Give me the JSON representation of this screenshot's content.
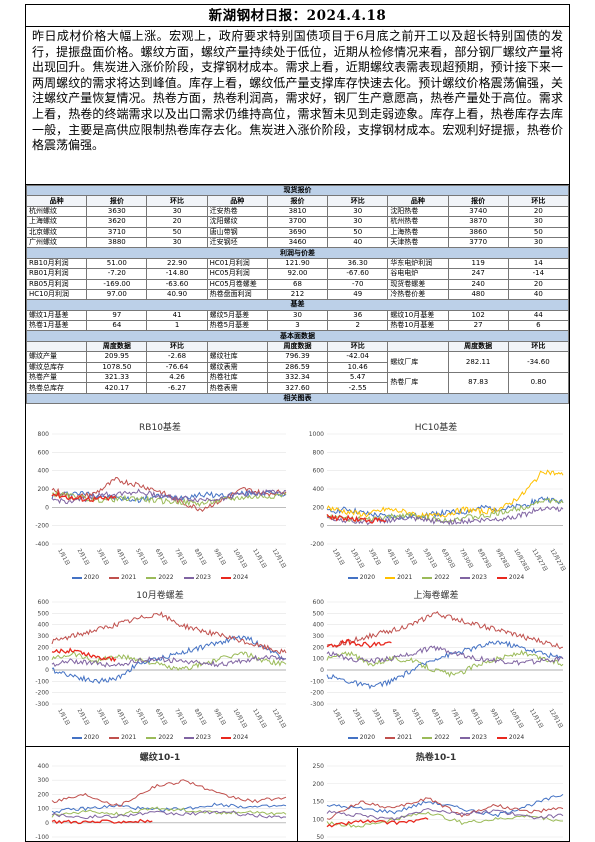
{
  "title": "新湖钢材日报：2024.4.18",
  "summary": "昨日成材价格大幅上涨。宏观上，政府要求特别国债项目于6月底之前开工以及超长特别国债的发行，提振盘面价格。螺纹方面，螺纹产量持续处于低位，近期从检修情况来看，部分钢厂螺纹产量将出现回升。焦炭进入涨价阶段，支撑钢材成本。需求上看，近期螺纹表需表现超预期，预计接下来一两周螺纹的需求将达到峰值。库存上看，螺纹低产量支撑库存快速去化。预计螺纹价格震荡偏强，关注螺纹产量恢复情况。热卷方面，热卷利润高，需求好，钢厂生产意愿高，热卷产量处于高位。需求上看，热卷的终端需求以及出口需求仍维持高位，需求暂未见到走弱迹象。库存上看，热卷库存去库一般，主要是高供应限制热卷库存去化。焦炭进入涨价阶段，支撑钢材成本。宏观利好提振，热卷价格震荡偏强。",
  "spot": {
    "section": "现货报价",
    "headers": [
      "品种",
      "报价",
      "环比",
      "品种",
      "报价",
      "环比",
      "品种",
      "报价",
      "环比"
    ],
    "rows": [
      [
        "杭州螺纹",
        "3630",
        "30",
        "迁安热卷",
        "3810",
        "30",
        "沈阳热卷",
        "3740",
        "20"
      ],
      [
        "上海螺纹",
        "3620",
        "20",
        "沈阳螺纹",
        "3700",
        "30",
        "杭州热卷",
        "3870",
        "30"
      ],
      [
        "北京螺纹",
        "3710",
        "50",
        "唐山带钢",
        "3690",
        "50",
        "上海热卷",
        "3860",
        "50"
      ],
      [
        "广州螺纹",
        "3880",
        "30",
        "迁安钢坯",
        "3460",
        "40",
        "天津热卷",
        "3770",
        "30"
      ]
    ]
  },
  "profit": {
    "section": "利润与价差",
    "rows": [
      [
        "RB10月利润",
        "51.00",
        "22.90",
        "HC01月利润",
        "121.90",
        "36.30",
        "华东电炉利润",
        "119",
        "14"
      ],
      [
        "RB01月利润",
        "-7.20",
        "-14.80",
        "HC05月利润",
        "92.00",
        "-67.60",
        "谷电电炉",
        "247",
        "-14"
      ],
      [
        "RB05月利润",
        "-169.00",
        "-63.60",
        "HC05月卷螺差",
        "68",
        "-70",
        "现货卷螺差",
        "240",
        "20"
      ],
      [
        "HC10月利润",
        "97.00",
        "40.90",
        "热卷盘面利润",
        "212",
        "49",
        "冷热卷价差",
        "480",
        "40"
      ]
    ]
  },
  "basis": {
    "section": "基差",
    "rows": [
      [
        "螺纹1月基差",
        "97",
        "41",
        "螺纹5月基差",
        "30",
        "36",
        "螺纹10月基差",
        "102",
        "44"
      ],
      [
        "热卷1月基差",
        "64",
        "1",
        "热卷5月基差",
        "3",
        "2",
        "热卷10月基差",
        "27",
        "6"
      ]
    ]
  },
  "fundamental": {
    "section": "基本面数据",
    "headers": [
      "",
      "周度数据",
      "环比",
      "",
      "周度数据",
      "环比",
      "",
      "周度数据",
      "环比"
    ],
    "rows": [
      [
        "螺纹产量",
        "209.95",
        "-2.68",
        "螺纹社库",
        "796.39",
        "-42.04",
        "螺纹厂库",
        "282.11",
        "-34.60"
      ],
      [
        "螺纹总库存",
        "1078.50",
        "-76.64",
        "螺纹表需",
        "286.59",
        "10.46",
        "",
        "",
        ""
      ],
      [
        "热卷产量",
        "321.33",
        "4.26",
        "热卷社库",
        "332.34",
        "5.47",
        "热卷厂库",
        "87.83",
        "0.80"
      ],
      [
        "热卷总库存",
        "420.17",
        "-6.27",
        "热卷表需",
        "327.60",
        "-2.55",
        "",
        "",
        ""
      ]
    ]
  },
  "charts_section": "相关图表",
  "legend_colors": {
    "2020": "#4472c4",
    "2021": "#c0504d",
    "2022": "#9bbb59",
    "2023": "#8064a2",
    "2024": "#e8281e",
    "2024_hc": "#e8281e"
  },
  "chart_data": [
    {
      "type": "line",
      "title": "RB10基差",
      "ylim": [
        -400,
        800
      ],
      "yticks": [
        "800",
        "600",
        "400",
        "200",
        "0",
        "-200",
        "-400"
      ],
      "xticks": [
        "1月1日",
        "2月1日",
        "3月1日",
        "4月1日",
        "5月1日",
        "6月1日",
        "7月1日",
        "8月1日",
        "9月1日",
        "10月1日",
        "11月1日",
        "12月1日"
      ],
      "series": [
        {
          "name": "2020",
          "color": "#4472c4",
          "values": [
            120,
            160,
            140,
            100,
            80,
            120,
            110,
            140,
            130,
            150,
            160,
            140
          ]
        },
        {
          "name": "2021",
          "color": "#c0504d",
          "values": [
            200,
            100,
            150,
            300,
            250,
            180,
            60,
            -20,
            80,
            200,
            150,
            170
          ]
        },
        {
          "name": "2022",
          "color": "#9bbb59",
          "values": [
            150,
            120,
            80,
            90,
            100,
            70,
            60,
            40,
            80,
            110,
            120,
            140
          ]
        },
        {
          "name": "2023",
          "color": "#8064a2",
          "values": [
            80,
            60,
            120,
            150,
            170,
            130,
            100,
            80,
            100,
            150,
            160,
            180
          ]
        },
        {
          "name": "2024",
          "color": "#e8281e",
          "values": [
            150,
            100,
            90,
            100
          ]
        }
      ]
    },
    {
      "type": "line",
      "title": "HC10基差",
      "ylim": [
        -200,
        1000
      ],
      "yticks": [
        "1000",
        "800",
        "600",
        "400",
        "200",
        "0",
        "-200"
      ],
      "xticks": [
        "1月1日",
        "1月31日",
        "3月2日",
        "4月1日",
        "5月1日",
        "5月31日",
        "6月30日",
        "7月30日",
        "8月29日",
        "9月28日",
        "10月28日",
        "11月27日",
        "12月27日"
      ],
      "series": [
        {
          "name": "2020",
          "color": "#4472c4",
          "values": [
            150,
            180,
            130,
            100,
            90,
            120,
            140,
            150,
            200,
            180,
            220,
            300,
            250
          ]
        },
        {
          "name": "2021",
          "color": "#ffc000",
          "values": [
            200,
            150,
            120,
            180,
            150,
            100,
            120,
            180,
            150,
            200,
            350,
            600,
            550
          ]
        },
        {
          "name": "2022",
          "color": "#9bbb59",
          "values": [
            100,
            80,
            60,
            90,
            120,
            80,
            60,
            90,
            100,
            150,
            200,
            280,
            250
          ]
        },
        {
          "name": "2023",
          "color": "#8064a2",
          "values": [
            80,
            60,
            40,
            60,
            80,
            60,
            40,
            50,
            60,
            80,
            120,
            200,
            180
          ]
        },
        {
          "name": "2024",
          "color": "#e8281e",
          "values": [
            100,
            80,
            60,
            50
          ]
        }
      ]
    },
    {
      "type": "line",
      "title": "10月卷螺差",
      "ylim": [
        -300,
        600
      ],
      "yticks": [
        "600",
        "500",
        "400",
        "300",
        "200",
        "100",
        "0",
        "-100",
        "-200",
        "-300"
      ],
      "xticks": [
        "1月1日",
        "2月1日",
        "3月1日",
        "4月1日",
        "5月1日",
        "6月1日",
        "7月1日",
        "8月1日",
        "9月1日",
        "10月1日",
        "11月1日",
        "12月1日"
      ],
      "series": [
        {
          "name": "2020",
          "color": "#4472c4",
          "values": [
            0,
            -50,
            -100,
            -80,
            50,
            100,
            150,
            200,
            250,
            300,
            200,
            100
          ]
        },
        {
          "name": "2021",
          "color": "#c0504d",
          "values": [
            250,
            300,
            350,
            400,
            450,
            500,
            400,
            350,
            300,
            250,
            200,
            150
          ]
        },
        {
          "name": "2022",
          "color": "#9bbb59",
          "values": [
            100,
            150,
            80,
            120,
            100,
            50,
            0,
            50,
            100,
            150,
            80,
            50
          ]
        },
        {
          "name": "2023",
          "color": "#8064a2",
          "values": [
            50,
            80,
            60,
            40,
            80,
            100,
            80,
            60,
            50,
            80,
            120,
            100
          ]
        },
        {
          "name": "2024",
          "color": "#e8281e",
          "values": [
            150,
            180,
            120,
            100
          ]
        }
      ]
    },
    {
      "type": "line",
      "title": "上海卷螺差",
      "ylim": [
        -300,
        600
      ],
      "yticks": [
        "600",
        "500",
        "400",
        "300",
        "200",
        "100",
        "0",
        "-100",
        "-200",
        "-300"
      ],
      "xticks": [
        "1月1日",
        "2月1日",
        "3月1日",
        "4月1日",
        "5月1日",
        "6月1日",
        "7月1日",
        "8月1日",
        "9月1日",
        "10月1日",
        "11月1日",
        "12月1日"
      ],
      "series": [
        {
          "name": "2020",
          "color": "#4472c4",
          "values": [
            -50,
            -100,
            -150,
            -100,
            0,
            100,
            150,
            200,
            250,
            200,
            150,
            100
          ]
        },
        {
          "name": "2021",
          "color": "#c0504d",
          "values": [
            200,
            250,
            300,
            350,
            400,
            500,
            450,
            400,
            350,
            300,
            250,
            200
          ]
        },
        {
          "name": "2022",
          "color": "#9bbb59",
          "values": [
            100,
            150,
            50,
            100,
            80,
            0,
            -50,
            50,
            100,
            150,
            100,
            50
          ]
        },
        {
          "name": "2023",
          "color": "#8064a2",
          "values": [
            150,
            100,
            80,
            100,
            150,
            200,
            150,
            100,
            80,
            60,
            80,
            100
          ]
        },
        {
          "name": "2024",
          "color": "#e8281e",
          "values": [
            200,
            250,
            220,
            240
          ]
        }
      ]
    },
    {
      "type": "line",
      "title": "螺纹10-1",
      "ylim": [
        -100,
        400
      ],
      "yticks": [
        "400",
        "300",
        "200",
        "100",
        "0",
        "-100"
      ],
      "xticks": [],
      "series": [
        {
          "name": "2020",
          "color": "#4472c4",
          "values": [
            80,
            100,
            120,
            90,
            100,
            130,
            110,
            120
          ]
        },
        {
          "name": "2021",
          "color": "#c0504d",
          "values": [
            150,
            200,
            120,
            250,
            300,
            200,
            150,
            180
          ]
        },
        {
          "name": "2022",
          "color": "#9bbb59",
          "values": [
            50,
            80,
            60,
            100,
            90,
            70,
            80,
            60
          ]
        },
        {
          "name": "2023",
          "color": "#8064a2",
          "values": [
            60,
            40,
            50,
            70,
            60,
            80,
            50,
            40
          ]
        },
        {
          "name": "2024",
          "color": "#e8281e",
          "values": [
            10,
            5,
            8,
            12
          ]
        }
      ]
    },
    {
      "type": "line",
      "title": "热卷10-1",
      "ylim": [
        50,
        250
      ],
      "yticks": [
        "250",
        "200",
        "150",
        "100",
        "50"
      ],
      "xticks": [],
      "series": [
        {
          "name": "2020",
          "color": "#4472c4",
          "values": [
            140,
            130,
            120,
            150,
            130,
            110,
            140,
            170
          ]
        },
        {
          "name": "2021",
          "color": "#c0504d",
          "values": [
            100,
            150,
            130,
            160,
            110,
            140,
            120,
            130
          ]
        },
        {
          "name": "2022",
          "color": "#9bbb59",
          "values": [
            90,
            80,
            100,
            120,
            90,
            100,
            110,
            95
          ]
        },
        {
          "name": "2023",
          "color": "#8064a2",
          "values": [
            120,
            110,
            100,
            130,
            115,
            125,
            105,
            110
          ]
        },
        {
          "name": "2024",
          "color": "#e8281e",
          "values": [
            80,
            95,
            90,
            100
          ]
        }
      ]
    }
  ]
}
